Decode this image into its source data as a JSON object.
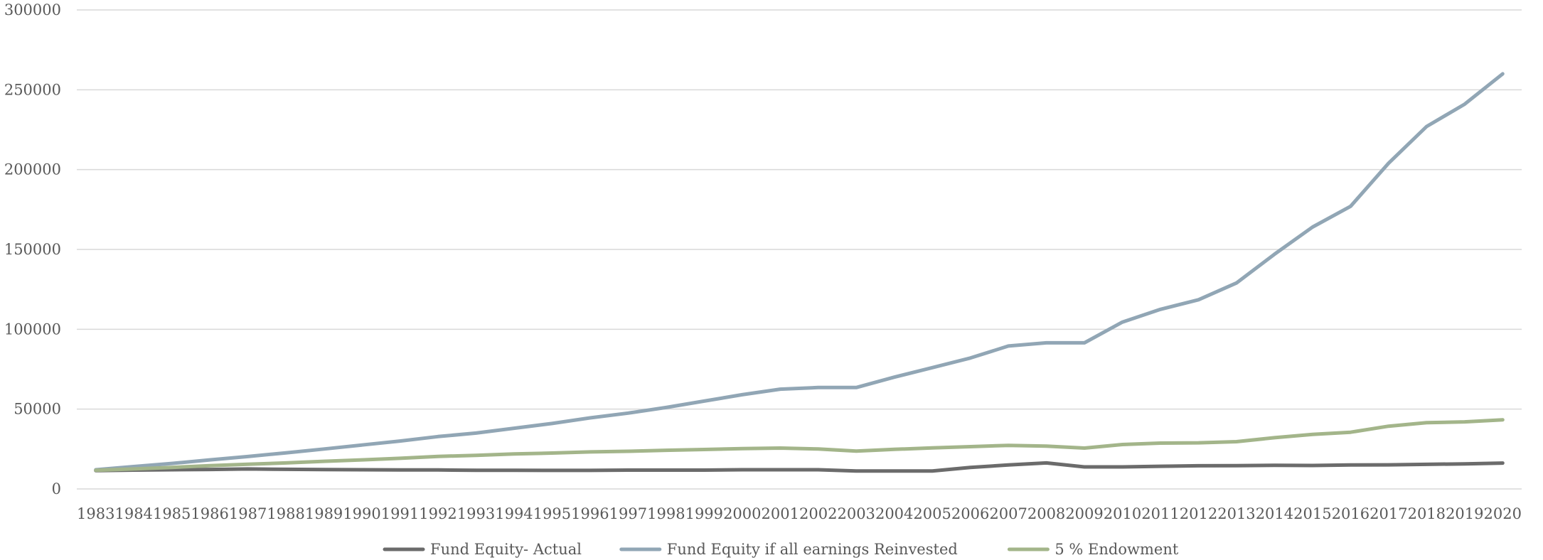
{
  "chart_data": {
    "type": "line",
    "title": "",
    "xlabel": "",
    "ylabel": "",
    "ylim": [
      0,
      300000
    ],
    "yticks": [
      "0",
      "50000",
      "100000",
      "150000",
      "200000",
      "250000",
      "300000"
    ],
    "grid": true,
    "legend_position": "bottom",
    "categories": [
      "1983",
      "1984",
      "1985",
      "1986",
      "1987",
      "1988",
      "1989",
      "1990",
      "1991",
      "1992",
      "1993",
      "1994",
      "1995",
      "1996",
      "1997",
      "1998",
      "1999",
      "2000",
      "2001",
      "2002",
      "2003",
      "2004",
      "2005",
      "2006",
      "2007",
      "2008",
      "2009",
      "2010",
      "2011",
      "2012",
      "2013",
      "2014",
      "2015",
      "2016",
      "2017",
      "2018",
      "2019",
      "2020"
    ],
    "series": [
      {
        "name": "Fund Equity- Actual",
        "color": "#6b6b6b",
        "values": [
          11500,
          11800,
          12000,
          12200,
          12500,
          12300,
          12100,
          12000,
          11900,
          11900,
          11700,
          11700,
          11600,
          11600,
          11800,
          11800,
          11800,
          12000,
          12000,
          12000,
          11200,
          11200,
          11200,
          13500,
          15000,
          16300,
          13800,
          13800,
          14200,
          14500,
          14600,
          14800,
          14700,
          15000,
          15100,
          15400,
          15700,
          16200
        ]
      },
      {
        "name": "Fund Equity if all earnings Reinvested",
        "color": "#91a6b5",
        "values": [
          12000,
          14000,
          16000,
          18200,
          20300,
          22600,
          25000,
          27500,
          30000,
          32800,
          35000,
          38000,
          41000,
          44500,
          47500,
          51000,
          55000,
          59000,
          62500,
          63500,
          63500,
          70000,
          76000,
          82000,
          89500,
          91500,
          91500,
          104500,
          112500,
          118500,
          129000,
          147000,
          164000,
          177000,
          204000,
          227000,
          241000,
          260000
        ]
      },
      {
        "name": "5 % Endowment",
        "color": "#a3b58a",
        "values": [
          11700,
          12500,
          13500,
          14600,
          15500,
          16300,
          17300,
          18200,
          19200,
          20400,
          21000,
          21900,
          22500,
          23200,
          23600,
          24200,
          24700,
          25300,
          25600,
          25000,
          23700,
          24800,
          25700,
          26500,
          27300,
          26800,
          25600,
          27800,
          28700,
          28900,
          29600,
          32100,
          34200,
          35500,
          39300,
          41500,
          42000,
          43300
        ]
      }
    ]
  }
}
